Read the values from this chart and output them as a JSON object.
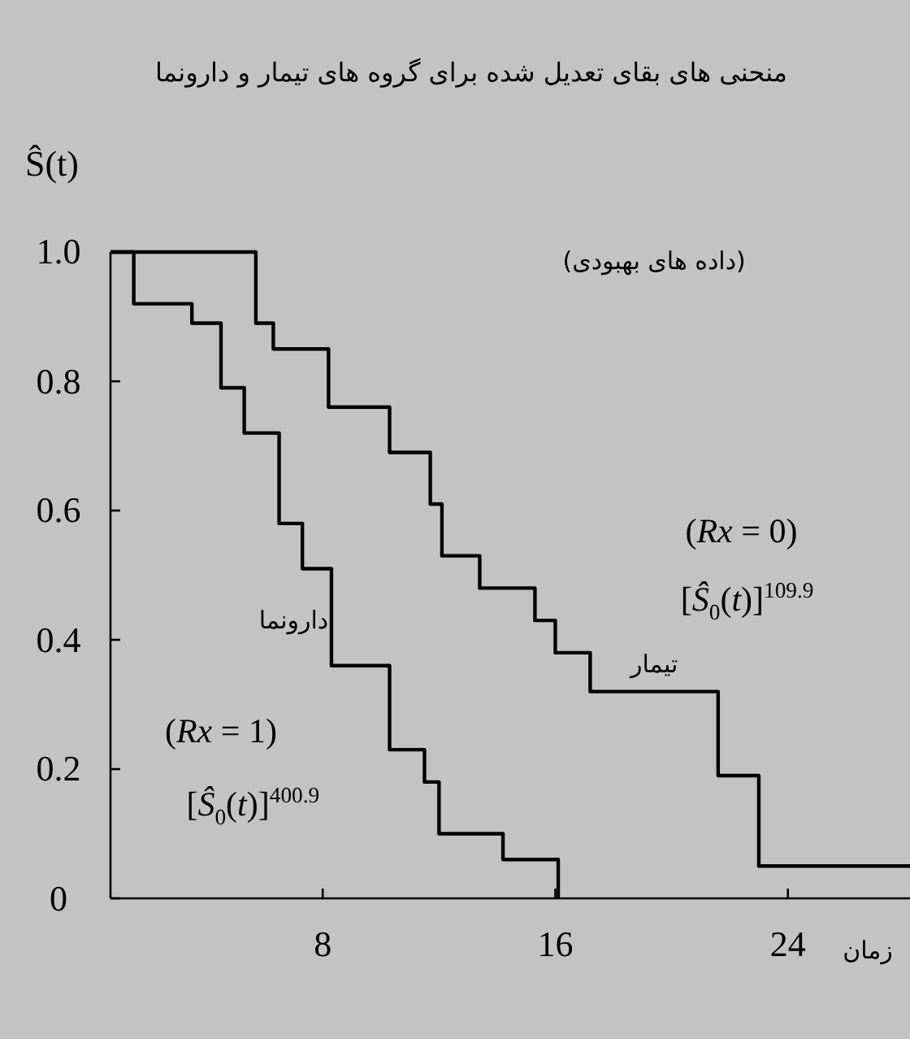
{
  "chart_data": {
    "type": "step",
    "title": "منحنی های بقای تعدیل شده برای گروه های تیمار و دارونما",
    "xlabel": "زمان",
    "ylabel": "Ŝ(t)",
    "xlim": [
      0.7,
      28.2
    ],
    "ylim": [
      0,
      1
    ],
    "xticks": [
      8,
      16,
      24
    ],
    "yticks": [
      0,
      0.2,
      0.4,
      0.6,
      0.8,
      {
        "value": 1,
        "label": "1.0"
      }
    ],
    "series": [
      {
        "name": "تیمار",
        "color": "#000000",
        "x": [
          0.7,
          5.7,
          6.3,
          8.2,
          10.3,
          11.7,
          12.1,
          13.4,
          15.3,
          16.0,
          17.2,
          21.6,
          23.0,
          28.2
        ],
        "values": [
          1,
          0.89,
          0.85,
          0.76,
          0.69,
          0.61,
          0.53,
          0.48,
          0.43,
          0.38,
          0.32,
          0.19,
          0.05,
          0.05
        ]
      },
      {
        "name": "دارونما",
        "color": "#000000",
        "x": [
          0.7,
          1.5,
          3.5,
          4.5,
          5.3,
          6.5,
          7.3,
          8.3,
          10.3,
          11.5,
          12.0,
          14.2,
          16.1
        ],
        "values": [
          1,
          0.92,
          0.89,
          0.79,
          0.72,
          0.58,
          0.51,
          0.36,
          0.23,
          0.18,
          0.1,
          0.06,
          0
        ]
      }
    ],
    "annotations": [
      "(داده های بهبودی)",
      "(*Rx* = 0)",
      "[*Ŝ*$_{0}$(*t*)]$^{109.9}$",
      "(*Rx* = 1)",
      "[*Ŝ*$_{0}$(*t*)]$^{400.9}$"
    ]
  }
}
